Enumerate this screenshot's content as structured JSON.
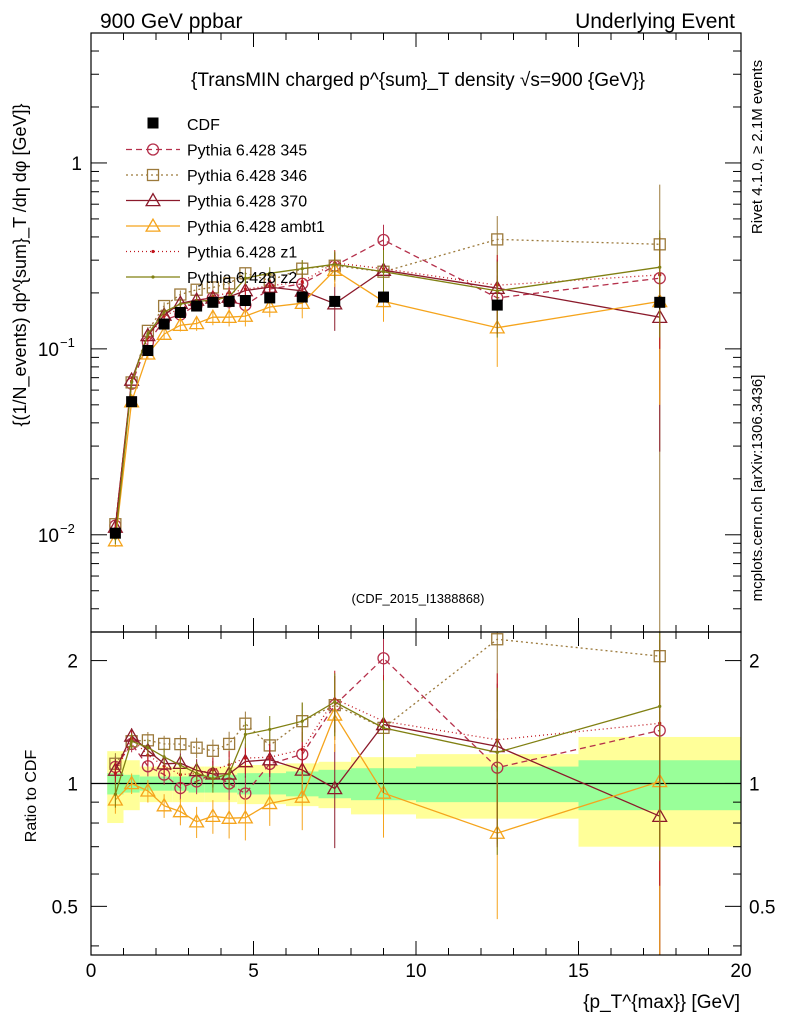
{
  "header": {
    "left": "900 GeV ppbar",
    "right": "Underlying Event"
  },
  "side_labels": {
    "rivet": "Rivet 4.1.0, ≥ 2.1M events",
    "mcplots": "mcplots.cern.ch [arXiv:1306.3436]"
  },
  "chart_data": {
    "type": "scatter",
    "title": "{TransMIN charged p^{sum}_T density √s=900 {GeV}}",
    "analysis_label": "(CDF_2015_I1388868)",
    "xlabel": "{p_T^{max}} [GeV]",
    "ylabel": "{(1/N_events) dp^{sum}_T /dη dφ [GeV]}",
    "ratio_ylabel": "Ratio to CDF",
    "xlim": [
      0,
      20
    ],
    "ylim": [
      0.003,
      5
    ],
    "ylog": true,
    "ratio_ylim": [
      0.38,
      2.35
    ],
    "x_ticks": [
      0,
      5,
      10,
      15,
      20
    ],
    "y_ticks": [
      {
        "value": 0.01,
        "base": "10",
        "exp": "−2"
      },
      {
        "value": 0.1,
        "base": "10",
        "exp": "−1"
      },
      {
        "value": 1,
        "label": "1"
      }
    ],
    "ratio_ticks": [
      {
        "value": 0.5,
        "label": "0.5"
      },
      {
        "value": 1,
        "label": "1"
      },
      {
        "value": 2,
        "label": "2"
      }
    ],
    "x": [
      0.75,
      1.25,
      1.75,
      2.25,
      2.75,
      3.25,
      3.75,
      4.25,
      4.75,
      5.5,
      6.5,
      7.5,
      9.0,
      12.5,
      17.5
    ],
    "x_bins": [
      [
        0.5,
        1
      ],
      [
        1,
        1.5
      ],
      [
        1.5,
        2
      ],
      [
        2,
        2.5
      ],
      [
        2.5,
        3
      ],
      [
        3,
        3.5
      ],
      [
        3.5,
        4
      ],
      [
        4,
        4.5
      ],
      [
        4.5,
        5
      ],
      [
        5,
        6
      ],
      [
        6,
        7
      ],
      [
        7,
        8
      ],
      [
        8,
        10
      ],
      [
        10,
        15
      ],
      [
        15,
        20
      ]
    ],
    "data": {
      "name": "CDF",
      "values": [
        0.0102,
        0.052,
        0.098,
        0.136,
        0.157,
        0.17,
        0.178,
        0.18,
        0.182,
        0.188,
        0.19,
        0.18,
        0.19,
        0.172,
        0.178
      ],
      "band_stat": [
        0.06,
        0.05,
        0.04,
        0.04,
        0.04,
        0.05,
        0.05,
        0.05,
        0.06,
        0.06,
        0.07,
        0.08,
        0.09,
        0.1,
        0.14
      ],
      "band_total": [
        0.2,
        0.14,
        0.1,
        0.1,
        0.1,
        0.1,
        0.1,
        0.1,
        0.11,
        0.11,
        0.12,
        0.13,
        0.16,
        0.18,
        0.3
      ]
    },
    "series": [
      {
        "name": "Pythia 6.428 345",
        "color": "#b5304b",
        "dash": "6,4",
        "marker": "circle",
        "values": [
          0.0112,
          0.065,
          0.108,
          0.143,
          0.153,
          0.172,
          0.188,
          0.18,
          0.172,
          0.21,
          0.224,
          0.28,
          0.385,
          0.188,
          0.24
        ],
        "errors": [
          0.0007,
          0.003,
          0.006,
          0.008,
          0.01,
          0.012,
          0.014,
          0.016,
          0.018,
          0.02,
          0.03,
          0.05,
          0.08,
          0.06,
          0.18
        ]
      },
      {
        "name": "Pythia 6.428 346",
        "color": "#9c7a3c",
        "dash": "2,3",
        "marker": "square",
        "values": [
          0.0114,
          0.066,
          0.125,
          0.17,
          0.196,
          0.208,
          0.214,
          0.225,
          0.255,
          0.233,
          0.27,
          0.28,
          0.26,
          0.388,
          0.365
        ],
        "errors": [
          0.0007,
          0.003,
          0.006,
          0.008,
          0.01,
          0.012,
          0.014,
          0.016,
          0.018,
          0.02,
          0.03,
          0.05,
          0.08,
          0.13,
          0.4
        ]
      },
      {
        "name": "Pythia 6.428 370",
        "color": "#8b1a2b",
        "dash": "",
        "marker": "triangle",
        "values": [
          0.011,
          0.068,
          0.118,
          0.152,
          0.176,
          0.183,
          0.188,
          0.19,
          0.206,
          0.215,
          0.205,
          0.175,
          0.265,
          0.212,
          0.148
        ],
        "errors": [
          0.0007,
          0.003,
          0.006,
          0.008,
          0.01,
          0.012,
          0.014,
          0.016,
          0.018,
          0.02,
          0.03,
          0.05,
          0.08,
          0.09,
          0.12
        ]
      },
      {
        "name": "Pythia 6.428 ambt1",
        "color": "#f5a41c",
        "dash": "",
        "marker": "triangle",
        "values": [
          0.0093,
          0.052,
          0.094,
          0.12,
          0.134,
          0.137,
          0.148,
          0.148,
          0.15,
          0.168,
          0.176,
          0.265,
          0.18,
          0.13,
          0.18
        ],
        "errors": [
          0.0007,
          0.003,
          0.006,
          0.008,
          0.01,
          0.012,
          0.014,
          0.016,
          0.018,
          0.02,
          0.03,
          0.05,
          0.04,
          0.05,
          0.13
        ]
      },
      {
        "name": "Pythia 6.428 z1",
        "color": "#c0141c",
        "dash": "1,3",
        "marker": "dot",
        "values": [
          0.0108,
          0.067,
          0.115,
          0.15,
          0.165,
          0.18,
          0.192,
          0.2,
          0.21,
          0.218,
          0.23,
          0.29,
          0.27,
          0.22,
          0.25
        ],
        "errors": [
          0.0007,
          0.003,
          0.006,
          0.008,
          0.01,
          0.012,
          0.014,
          0.016,
          0.018,
          0.02,
          0.03,
          0.05,
          0.08,
          0.1,
          0.15
        ]
      },
      {
        "name": "Pythia 6.428 z2",
        "color": "#808012",
        "dash": "",
        "marker": "dot",
        "values": [
          0.0096,
          0.066,
          0.12,
          0.158,
          0.174,
          0.18,
          0.183,
          0.19,
          0.24,
          0.255,
          0.27,
          0.285,
          0.26,
          0.205,
          0.275
        ],
        "errors": [
          0.0007,
          0.003,
          0.006,
          0.008,
          0.01,
          0.012,
          0.014,
          0.016,
          0.018,
          0.02,
          0.03,
          0.05,
          0.08,
          0.09,
          0.16
        ]
      }
    ]
  }
}
